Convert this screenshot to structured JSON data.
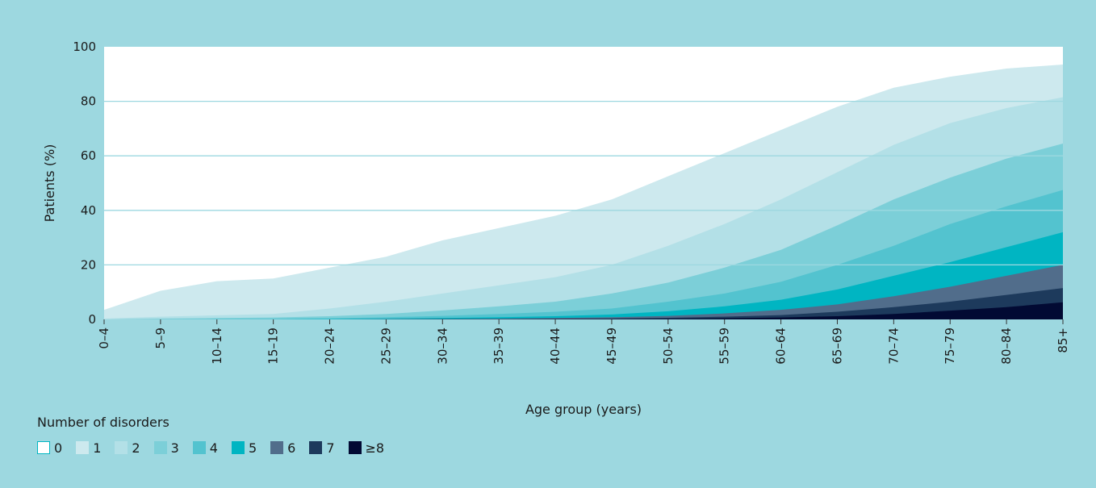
{
  "chart_data": {
    "type": "area",
    "stacked": false,
    "title": "",
    "xlabel": "Age group (years)",
    "ylabel": "Patients (%)",
    "ylim": [
      0,
      100
    ],
    "yticks": [
      0,
      20,
      40,
      60,
      80,
      100
    ],
    "grid": "horizontal",
    "categories": [
      "0–4",
      "5–9",
      "10–14",
      "15–19",
      "20–24",
      "25–29",
      "30–34",
      "35–39",
      "40–44",
      "45–49",
      "50–54",
      "55–59",
      "60–64",
      "65–69",
      "70–74",
      "75–79",
      "80–84",
      "85+"
    ],
    "legend": {
      "title": "Number of disorders",
      "position": "bottom-left"
    },
    "series": [
      {
        "name": "0",
        "color": "#ffffff",
        "values": [
          100,
          100,
          100,
          100,
          100,
          100,
          100,
          100,
          100,
          100,
          100,
          100,
          100,
          100,
          100,
          100,
          100,
          100
        ]
      },
      {
        "name": "1",
        "color": "#cde9ee",
        "values": [
          3.5,
          10.5,
          14,
          15,
          19,
          23,
          29,
          33.5,
          38,
          44,
          52.5,
          61,
          69.5,
          78,
          85,
          89,
          92,
          93.5
        ]
      },
      {
        "name": "2",
        "color": "#b3e0e7",
        "values": [
          0.3,
          1,
          1.5,
          2,
          4,
          6.5,
          9.5,
          12.5,
          15.5,
          20,
          27,
          35,
          44,
          54,
          64,
          72,
          77.5,
          81.5
        ]
      },
      {
        "name": "3",
        "color": "#7ccfd8",
        "values": [
          0,
          0.3,
          0.5,
          0.7,
          1.2,
          2,
          3.3,
          4.8,
          6.5,
          9.5,
          13.5,
          19,
          25.5,
          34.5,
          44,
          52,
          59,
          64.5
        ]
      },
      {
        "name": "4",
        "color": "#53c3cf",
        "values": [
          0,
          0,
          0.1,
          0.2,
          0.4,
          0.8,
          1.3,
          2,
          2.8,
          4,
          6.5,
          9.5,
          13.8,
          20,
          27,
          35,
          41.5,
          47.5
        ]
      },
      {
        "name": "5",
        "color": "#00b5c2",
        "values": [
          0,
          0,
          0,
          0,
          0.1,
          0.3,
          0.5,
          0.8,
          1.2,
          1.8,
          3,
          4.8,
          7.2,
          11,
          16,
          21,
          26.5,
          32
        ]
      },
      {
        "name": "6",
        "color": "#516d8b",
        "values": [
          0,
          0,
          0,
          0,
          0,
          0.1,
          0.2,
          0.3,
          0.5,
          0.8,
          1.3,
          2.2,
          3.5,
          5.5,
          8.5,
          12,
          16,
          20
        ]
      },
      {
        "name": "7",
        "color": "#1d3a5c",
        "values": [
          0,
          0,
          0,
          0,
          0,
          0,
          0.1,
          0.1,
          0.2,
          0.3,
          0.6,
          1,
          1.6,
          2.8,
          4.5,
          6.5,
          9,
          11.5
        ]
      },
      {
        "name": "≥8",
        "color": "#020a33",
        "values": [
          0,
          0,
          0,
          0,
          0,
          0,
          0,
          0,
          0.1,
          0.1,
          0.2,
          0.4,
          0.7,
          1.2,
          2,
          3.2,
          4.5,
          6.3
        ]
      }
    ]
  },
  "colors": {
    "background": "#9dd8e0",
    "gridline": "#9dd8e0",
    "legend_zero_border": "#00b5c2"
  }
}
